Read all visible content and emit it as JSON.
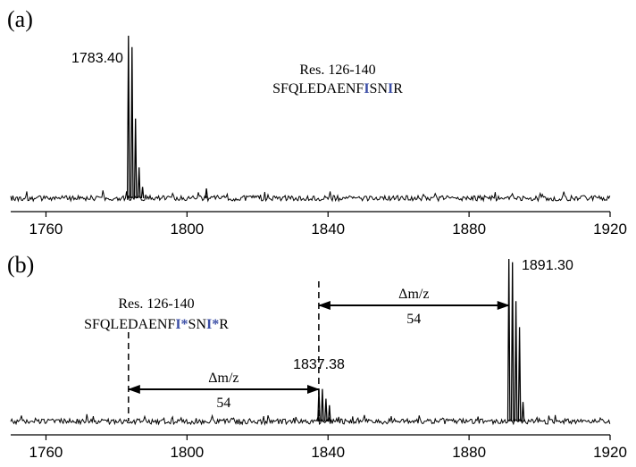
{
  "chart_data": [
    {
      "panel": "(a)",
      "type": "line",
      "xlim": [
        1750,
        1920
      ],
      "x_ticks": [
        1760,
        1800,
        1840,
        1880,
        1920
      ],
      "grid": false,
      "series_color": "#000000",
      "peaks": [
        {
          "mz": 1783.4,
          "rel_intensity": 1.0
        },
        {
          "mz": 1784.4,
          "rel_intensity": 0.93
        },
        {
          "mz": 1785.4,
          "rel_intensity": 0.49
        },
        {
          "mz": 1786.4,
          "rel_intensity": 0.19
        },
        {
          "mz": 1787.4,
          "rel_intensity": 0.07
        },
        {
          "mz": 1805.5,
          "rel_intensity": 0.06
        }
      ],
      "annotations": {
        "peak_label": "1783.40",
        "peptide_range": "Res. 126-140",
        "sequence": [
          {
            "t": "SFQLEDAENF",
            "c": "#000000",
            "b": false
          },
          {
            "t": "I",
            "c": "#3b4ea6",
            "b": true
          },
          {
            "t": "SN",
            "c": "#000000",
            "b": false
          },
          {
            "t": "I",
            "c": "#3b4ea6",
            "b": true
          },
          {
            "t": "R",
            "c": "#000000",
            "b": false
          }
        ]
      }
    },
    {
      "panel": "(b)",
      "type": "line",
      "xlim": [
        1750,
        1920
      ],
      "x_ticks": [
        1760,
        1800,
        1840,
        1880,
        1920
      ],
      "grid": false,
      "series_color": "#000000",
      "peaks": [
        {
          "mz": 1837.4,
          "rel_intensity": 0.2
        },
        {
          "mz": 1838.4,
          "rel_intensity": 0.2
        },
        {
          "mz": 1839.4,
          "rel_intensity": 0.14
        },
        {
          "mz": 1840.4,
          "rel_intensity": 0.1
        },
        {
          "mz": 1891.3,
          "rel_intensity": 1.0
        },
        {
          "mz": 1892.3,
          "rel_intensity": 0.98
        },
        {
          "mz": 1893.3,
          "rel_intensity": 0.74
        },
        {
          "mz": 1894.3,
          "rel_intensity": 0.58
        },
        {
          "mz": 1895.3,
          "rel_intensity": 0.12
        }
      ],
      "annotations": {
        "peak_label_1": "1837.38",
        "peak_label_2": "1891.30",
        "peptide_range": "Res. 126-140",
        "sequence": [
          {
            "t": "SFQLEDAENF",
            "c": "#000000",
            "b": false
          },
          {
            "t": "I*",
            "c": "#3b4ea6",
            "b": true
          },
          {
            "t": "SN",
            "c": "#000000",
            "b": false
          },
          {
            "t": "I*",
            "c": "#3b4ea6",
            "b": true
          },
          {
            "t": "R",
            "c": "#000000",
            "b": false
          }
        ],
        "dashed_markers_mz": [
          1783.4,
          1837.38
        ],
        "arrows": [
          {
            "from_mz": 1783.4,
            "to_mz": 1837.38,
            "delta_label": "Δm/z",
            "delta_value": "54"
          },
          {
            "from_mz": 1837.38,
            "to_mz": 1891.3,
            "delta_label": "Δm/z",
            "delta_value": "54"
          }
        ]
      }
    }
  ]
}
